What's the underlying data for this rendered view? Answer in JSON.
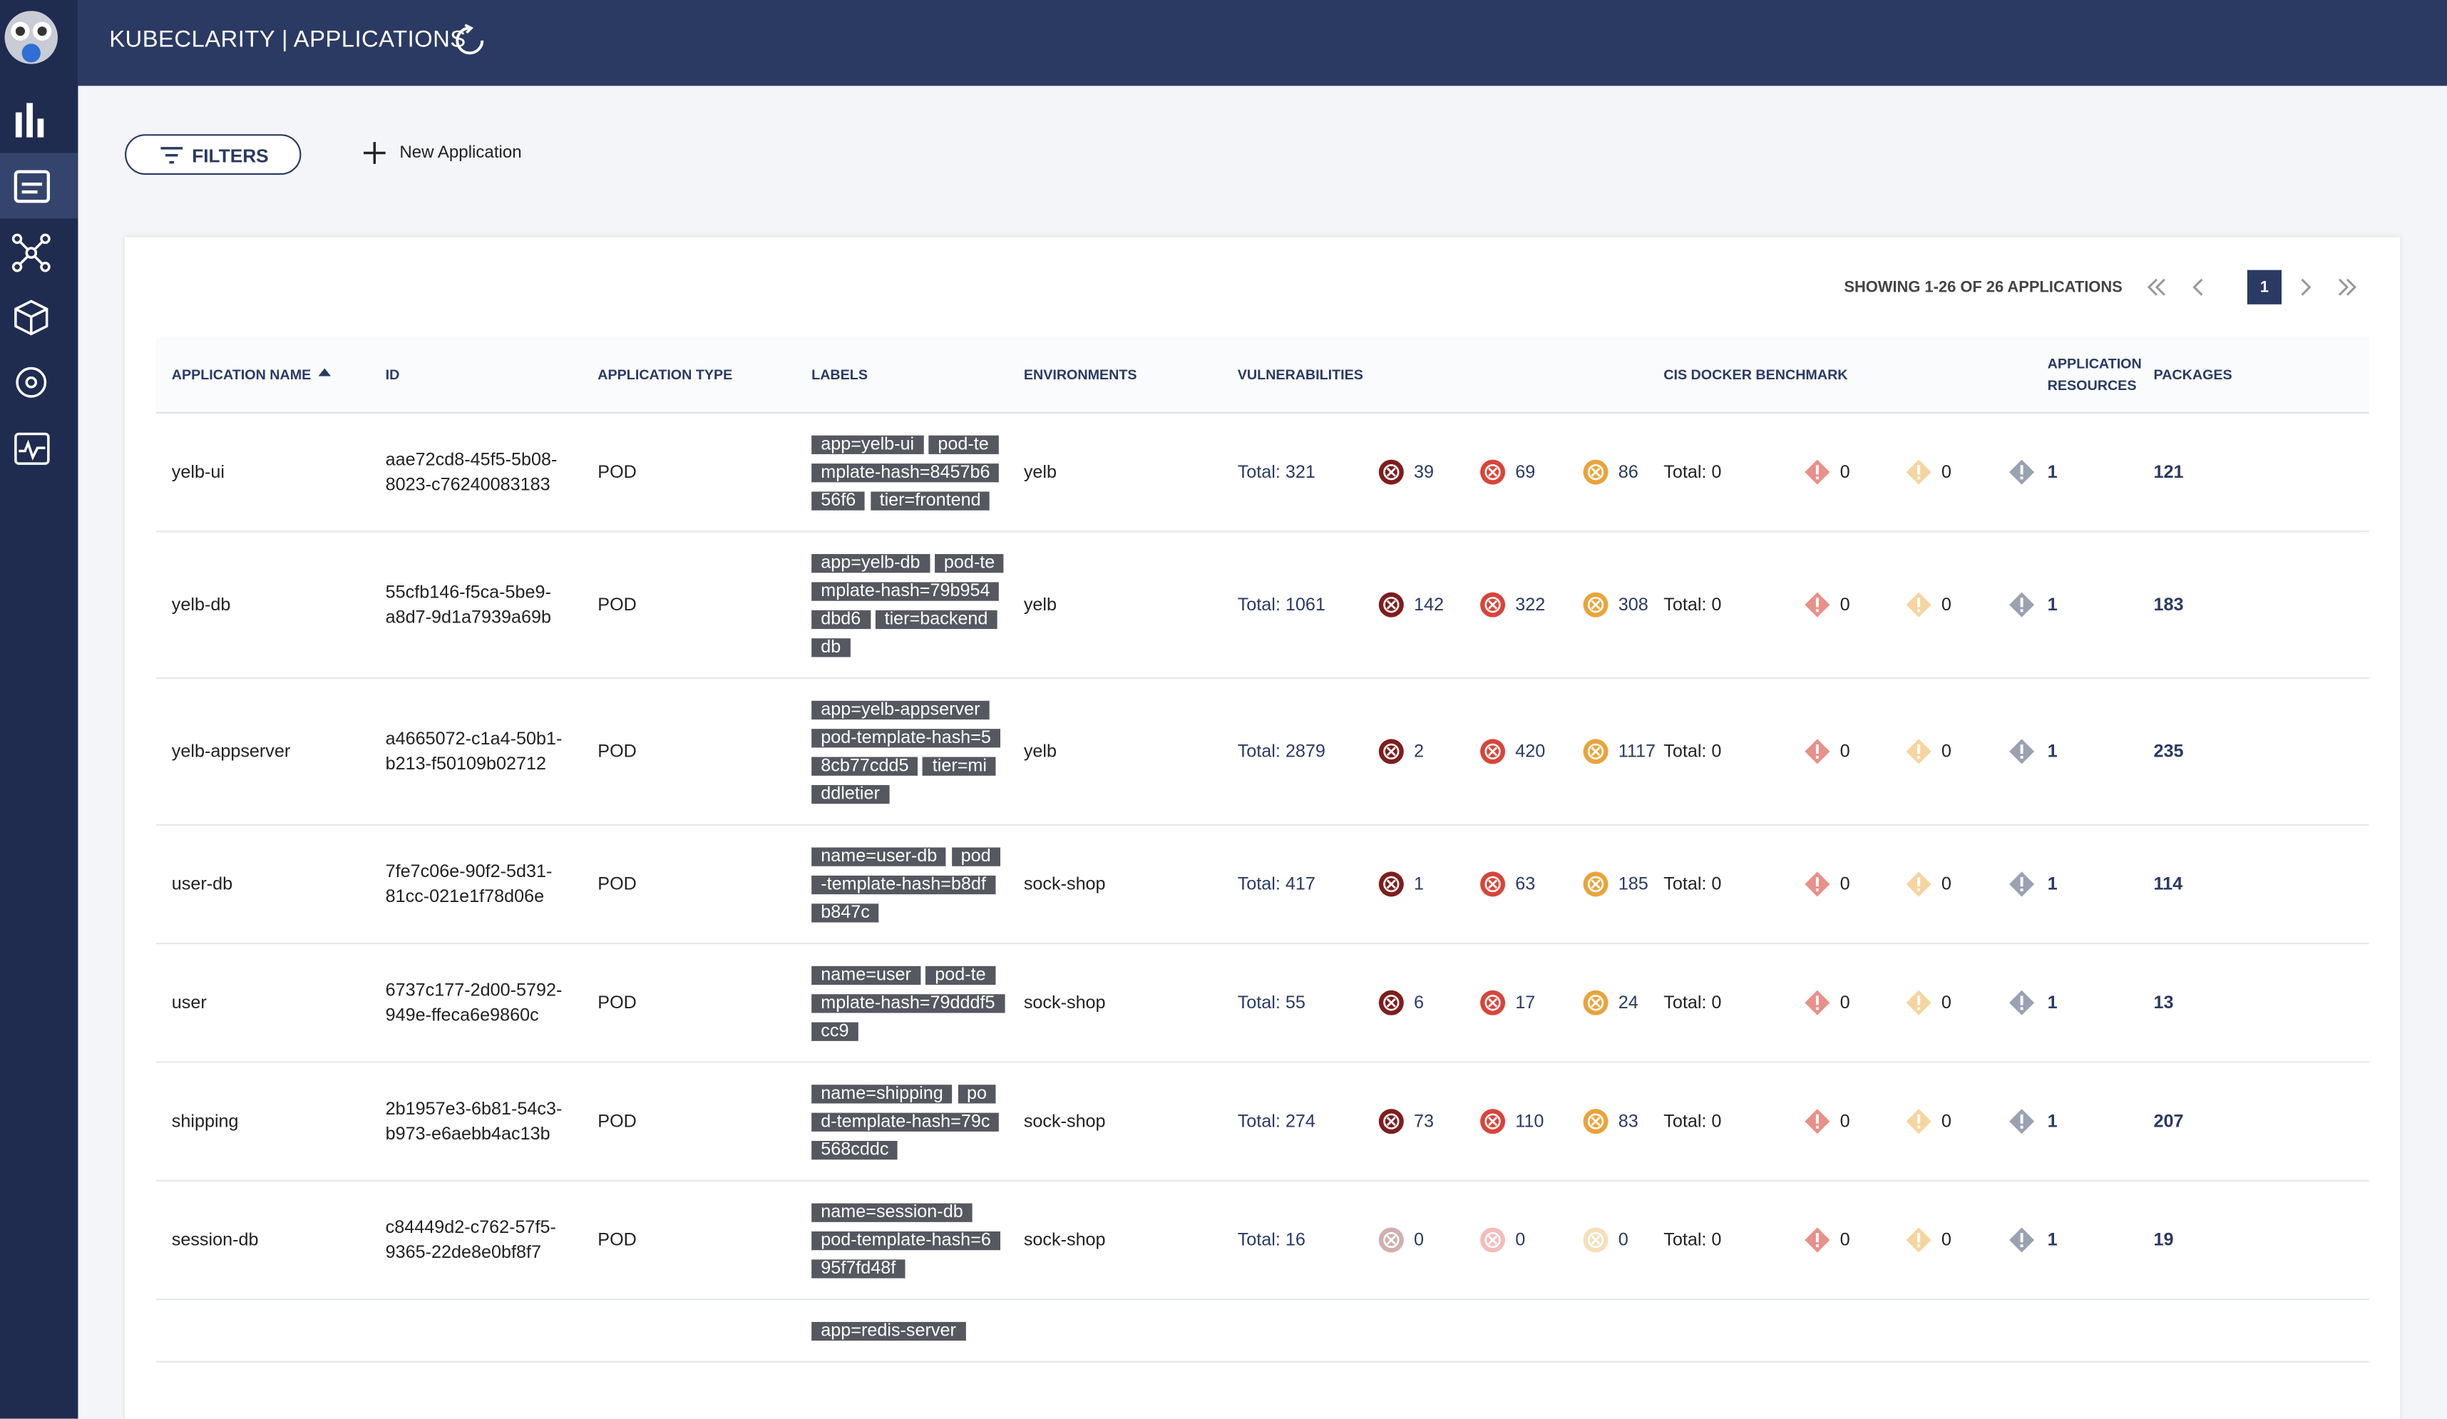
{
  "header": {
    "title": "KUBECLARITY | APPLICATIONS"
  },
  "toolbar": {
    "filters": "FILTERS",
    "new_application": "New Application"
  },
  "pagination": {
    "showing": "SHOWING 1-26 OF 26 APPLICATIONS",
    "page": "1"
  },
  "table": {
    "columns": [
      "APPLICATION NAME",
      "ID",
      "APPLICATION TYPE",
      "LABELS",
      "ENVIRONMENTS",
      "VULNERABILITIES",
      "CIS DOCKER BENCHMARK",
      "APPLICATION RESOURCES",
      "PACKAGES"
    ],
    "rows": [
      {
        "name": "yelb-ui",
        "id": "aae72cd8-45f5-5b08-8023-c76240083183",
        "type": "POD",
        "labels": [
          "app=yelb-ui",
          "pod-template-hash=8457b656f6",
          "tier=frontend"
        ],
        "environment": "yelb",
        "vuln_total": "Total: 321",
        "vulns": [
          39,
          69,
          86
        ],
        "cis_total": "Total: 0",
        "cis": [
          0,
          0
        ],
        "resources": 1,
        "packages": 121
      },
      {
        "name": "yelb-db",
        "id": "55cfb146-f5ca-5be9-a8d7-9d1a7939a69b",
        "type": "POD",
        "labels": [
          "app=yelb-db",
          "pod-template-hash=79b954dbd6",
          "tier=backenddb"
        ],
        "environment": "yelb",
        "vuln_total": "Total: 1061",
        "vulns": [
          142,
          322,
          308
        ],
        "cis_total": "Total: 0",
        "cis": [
          0,
          0
        ],
        "resources": 1,
        "packages": 183
      },
      {
        "name": "yelb-appserver",
        "id": "a4665072-c1a4-50b1-b213-f50109b02712",
        "type": "POD",
        "labels": [
          "app=yelb-appserver",
          "pod-template-hash=58cb77cdd5",
          "tier=middletier"
        ],
        "environment": "yelb",
        "vuln_total": "Total: 2879",
        "vulns": [
          2,
          420,
          1117
        ],
        "cis_total": "Total: 0",
        "cis": [
          0,
          0
        ],
        "resources": 1,
        "packages": 235
      },
      {
        "name": "user-db",
        "id": "7fe7c06e-90f2-5d31-81cc-021e1f78d06e",
        "type": "POD",
        "labels": [
          "name=user-db",
          "pod-template-hash=b8dfb847c"
        ],
        "environment": "sock-shop",
        "vuln_total": "Total: 417",
        "vulns": [
          1,
          63,
          185
        ],
        "cis_total": "Total: 0",
        "cis": [
          0,
          0
        ],
        "resources": 1,
        "packages": 114
      },
      {
        "name": "user",
        "id": "6737c177-2d00-5792-949e-ffeca6e9860c",
        "type": "POD",
        "labels": [
          "name=user",
          "pod-template-hash=79dddf5cc9"
        ],
        "environment": "sock-shop",
        "vuln_total": "Total: 55",
        "vulns": [
          6,
          17,
          24
        ],
        "cis_total": "Total: 0",
        "cis": [
          0,
          0
        ],
        "resources": 1,
        "packages": 13
      },
      {
        "name": "shipping",
        "id": "2b1957e3-6b81-54c3-b973-e6aebb4ac13b",
        "type": "POD",
        "labels": [
          "name=shipping",
          "pod-template-hash=79c568cddc"
        ],
        "environment": "sock-shop",
        "vuln_total": "Total: 274",
        "vulns": [
          73,
          110,
          83
        ],
        "cis_total": "Total: 0",
        "cis": [
          0,
          0
        ],
        "resources": 1,
        "packages": 207
      },
      {
        "name": "session-db",
        "id": "c84449d2-c762-57f5-9365-22de8e0bf8f7",
        "type": "POD",
        "labels": [
          "name=session-db",
          "pod-template-hash=695f7fd48f"
        ],
        "environment": "sock-shop",
        "vuln_total": "Total: 16",
        "vulns": [
          0,
          0,
          0
        ],
        "cis_total": "Total: 0",
        "cis": [
          0,
          0
        ],
        "resources": 1,
        "packages": 19
      },
      {
        "labels": [
          "app=redis-server"
        ]
      }
    ]
  }
}
